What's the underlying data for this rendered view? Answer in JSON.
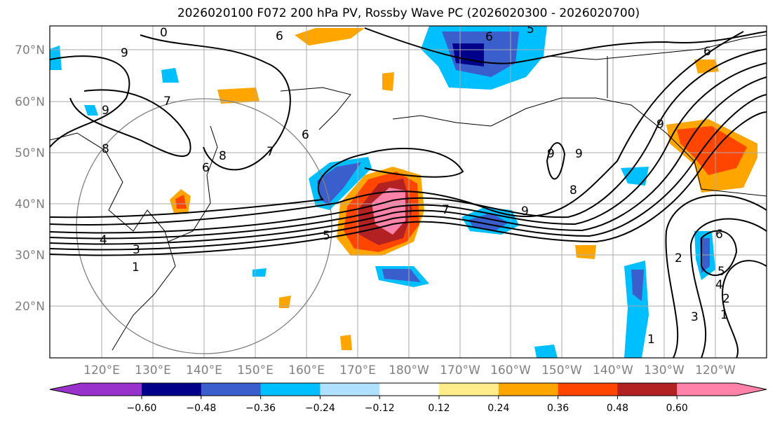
{
  "title": "2026020100 F072 200 hPa PV, Rossby Wave PC (2026020300 - 2026020700)",
  "lat_labels": [
    "70°N",
    "60°N",
    "50°N",
    "40°N",
    "30°N",
    "20°N"
  ],
  "lon_labels": [
    "120°E",
    "130°E",
    "140°E",
    "150°E",
    "160°E",
    "170°E",
    "180°W",
    "170°W",
    "160°W",
    "150°W",
    "140°W",
    "130°W",
    "120°W"
  ],
  "colorbar": {
    "colors": [
      "#9932cc",
      "#00008b",
      "#3a5fcd",
      "#00bfff",
      "#b0e0ff",
      "#ffffff",
      "#ffec8b",
      "#ffa500",
      "#ff4500",
      "#b22222",
      "#ff82ab"
    ],
    "ticks": [
      "−0.60",
      "−0.48",
      "−0.36",
      "−0.24",
      "−0.12",
      "0.12",
      "0.24",
      "0.36",
      "0.48",
      "0.60"
    ]
  },
  "contour_labels": [
    "9",
    "0",
    "6",
    "5",
    "6",
    "6",
    "6",
    "9",
    "8",
    "7",
    "6",
    "9",
    "7",
    "8",
    "9",
    "9",
    "7",
    "5",
    "4",
    "3",
    "1",
    "9",
    "8",
    "2",
    "6",
    "5",
    "4",
    "3",
    "2",
    "1",
    "1"
  ]
}
